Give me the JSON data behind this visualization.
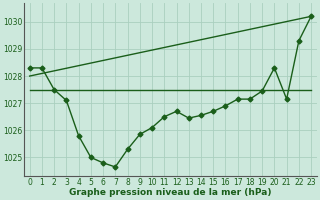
{
  "xlabel": "Graphe pression niveau de la mer (hPa)",
  "background_color": "#cce8dc",
  "grid_color": "#aacfbf",
  "line_color": "#1a5e1a",
  "yticks": [
    1025,
    1026,
    1027,
    1028,
    1029,
    1030
  ],
  "ylim": [
    1024.3,
    1030.7
  ],
  "xlim": [
    -0.5,
    23.5
  ],
  "xticks": [
    0,
    1,
    2,
    3,
    4,
    5,
    6,
    7,
    8,
    9,
    10,
    11,
    12,
    13,
    14,
    15,
    16,
    17,
    18,
    19,
    20,
    21,
    22,
    23
  ],
  "series1_x": [
    0,
    1,
    2,
    3,
    4,
    5,
    6,
    7,
    8,
    9,
    10,
    11,
    12,
    13,
    14,
    15,
    16,
    17,
    18,
    19,
    20,
    21,
    22,
    23
  ],
  "series1_y": [
    1028.3,
    1028.3,
    1027.5,
    1027.1,
    1025.8,
    1025.0,
    1024.8,
    1024.65,
    1025.3,
    1025.85,
    1026.1,
    1026.5,
    1026.7,
    1026.45,
    1026.55,
    1026.7,
    1026.9,
    1027.15,
    1027.15,
    1027.45,
    1028.3,
    1027.15,
    1029.3,
    1030.2
  ],
  "series2_x": [
    0,
    23
  ],
  "series2_y": [
    1027.5,
    1027.5
  ],
  "series3_x": [
    0,
    23
  ],
  "series3_y": [
    1028.0,
    1030.2
  ],
  "marker_size": 2.5,
  "linewidth": 1.0,
  "font_color": "#1a5e1a",
  "tick_fontsize": 5.5,
  "xlabel_fontsize": 6.5
}
